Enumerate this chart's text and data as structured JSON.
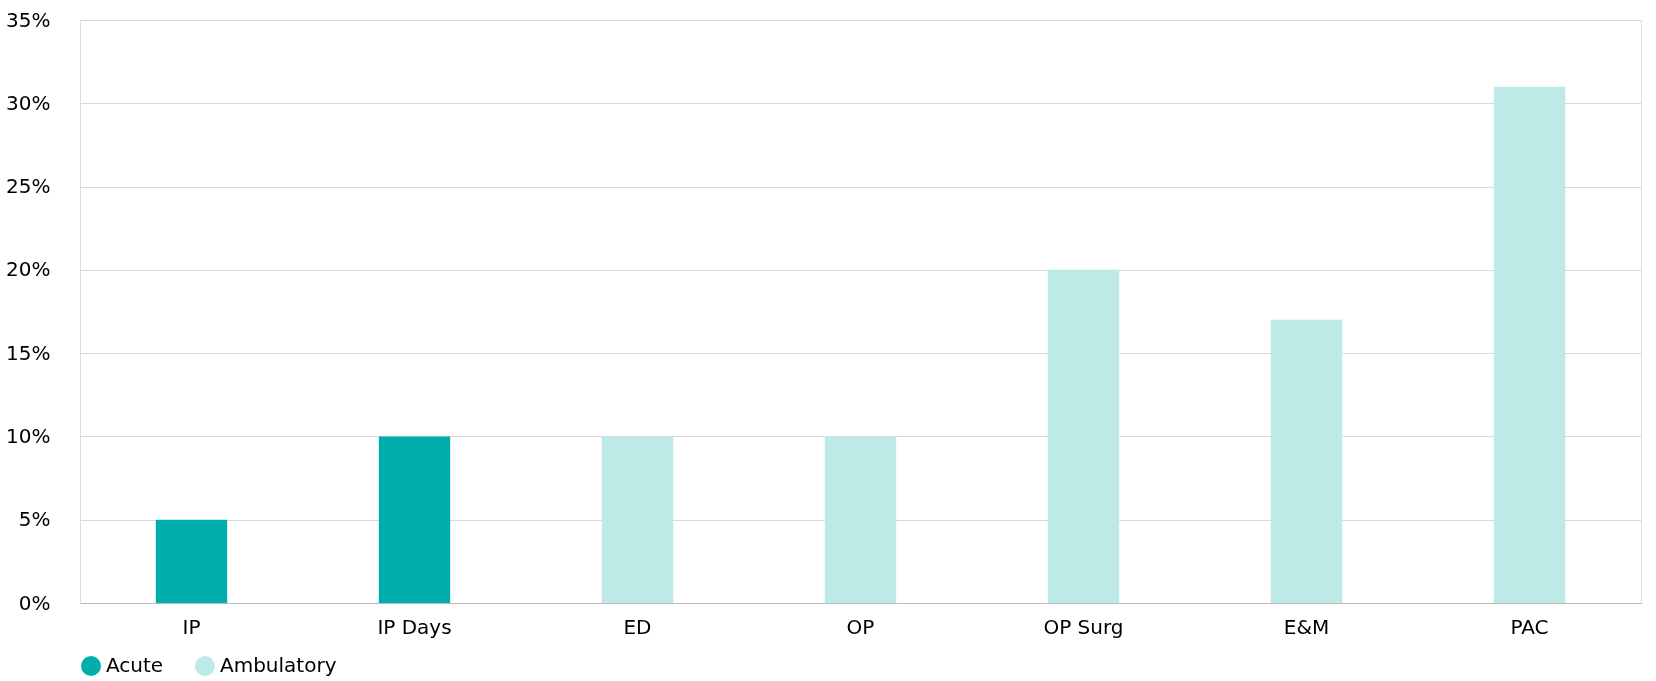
{
  "chart_data": {
    "type": "bar",
    "categories": [
      "IP",
      "IP Days",
      "ED",
      "OP",
      "OP Surg",
      "E&M",
      "PAC"
    ],
    "series": [
      {
        "name": "Acute",
        "color": "#00aeac",
        "values": [
          5,
          10,
          null,
          null,
          null,
          null,
          null
        ]
      },
      {
        "name": "Ambulatory",
        "color": "#bde9e7",
        "values": [
          null,
          null,
          10,
          10,
          20,
          17,
          31
        ]
      }
    ],
    "ylim": [
      0,
      35
    ],
    "yticks": [
      {
        "value": 0,
        "label": "0%"
      },
      {
        "value": 5,
        "label": "5%"
      },
      {
        "value": 10,
        "label": "10%"
      },
      {
        "value": 15,
        "label": "15%"
      },
      {
        "value": 20,
        "label": "20%"
      },
      {
        "value": 25,
        "label": "25%"
      },
      {
        "value": 30,
        "label": "30%"
      },
      {
        "value": 35,
        "label": "35%"
      }
    ],
    "grid": "y",
    "legend": "bottom"
  }
}
